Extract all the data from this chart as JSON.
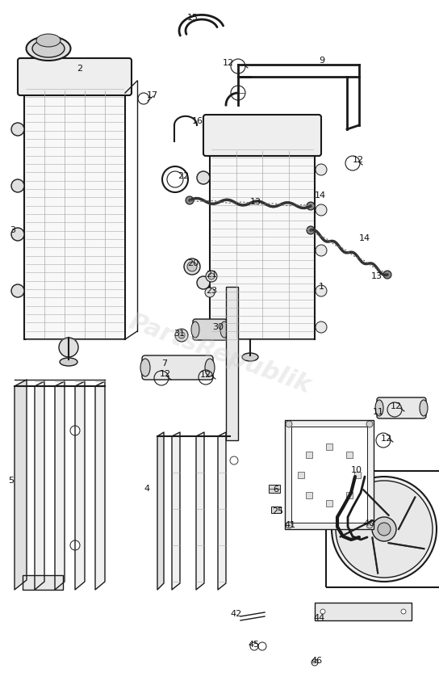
{
  "background_color": "#ffffff",
  "line_color": "#1a1a1a",
  "watermark": "PartsRepublik",
  "figsize": [
    5.44,
    8.43
  ],
  "dpi": 100
}
